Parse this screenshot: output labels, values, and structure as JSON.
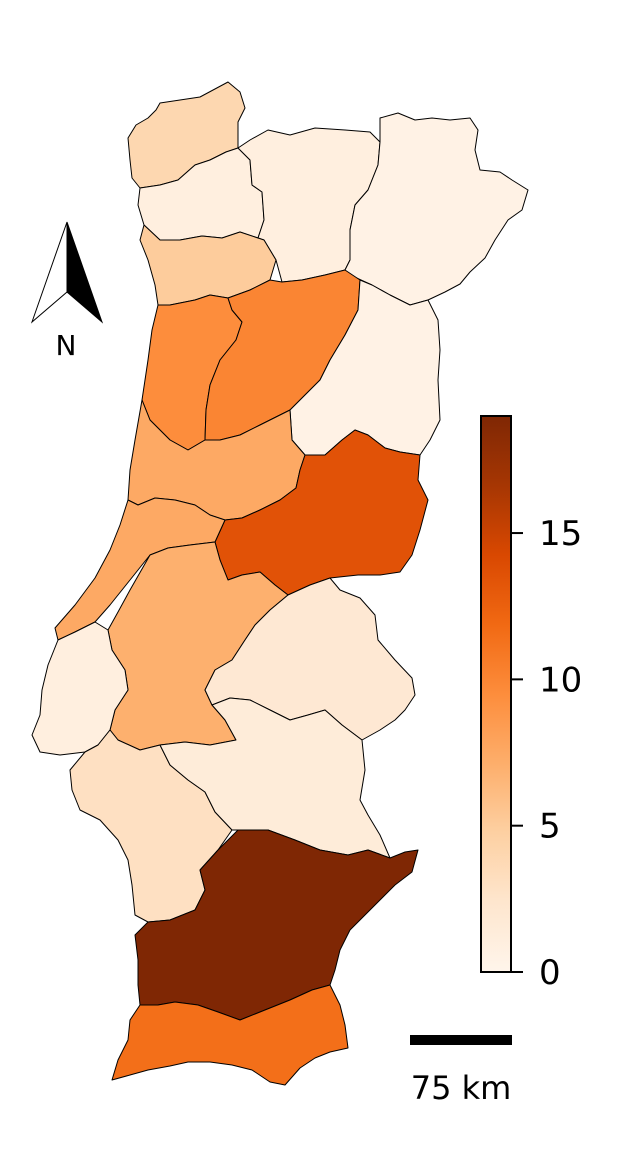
{
  "map": {
    "colormap": {
      "name": "Oranges",
      "min": 0,
      "max": 19,
      "stops": [
        "#fff5eb",
        "#fee6ce",
        "#fdd0a2",
        "#fdae6b",
        "#fd8d3c",
        "#f16913",
        "#d94801",
        "#a63603",
        "#7f2704"
      ],
      "ticks": [
        {
          "value": 0,
          "label": "0"
        },
        {
          "value": 5,
          "label": "5"
        },
        {
          "value": 10,
          "label": "10"
        },
        {
          "value": 15,
          "label": "15"
        }
      ]
    },
    "north_arrow": {
      "label": "N"
    },
    "scale_bar": {
      "label": "75 km"
    },
    "districts": [
      {
        "id": "viana-do-castelo",
        "value": 4
      },
      {
        "id": "braga",
        "value": 1
      },
      {
        "id": "vila-real",
        "value": 1
      },
      {
        "id": "braganca",
        "value": 0.5
      },
      {
        "id": "porto",
        "value": 5
      },
      {
        "id": "aveiro",
        "value": 9.5
      },
      {
        "id": "viseu",
        "value": 10
      },
      {
        "id": "guarda",
        "value": 0.5
      },
      {
        "id": "coimbra",
        "value": 7.5
      },
      {
        "id": "castelo-branco",
        "value": 13.5
      },
      {
        "id": "leiria",
        "value": 7.5
      },
      {
        "id": "santarem",
        "value": 7
      },
      {
        "id": "portalegre",
        "value": 2
      },
      {
        "id": "lisboa",
        "value": 1
      },
      {
        "id": "setubal",
        "value": 3
      },
      {
        "id": "evora",
        "value": 1.5
      },
      {
        "id": "beja",
        "value": 19
      },
      {
        "id": "faro",
        "value": 11.5
      }
    ]
  }
}
